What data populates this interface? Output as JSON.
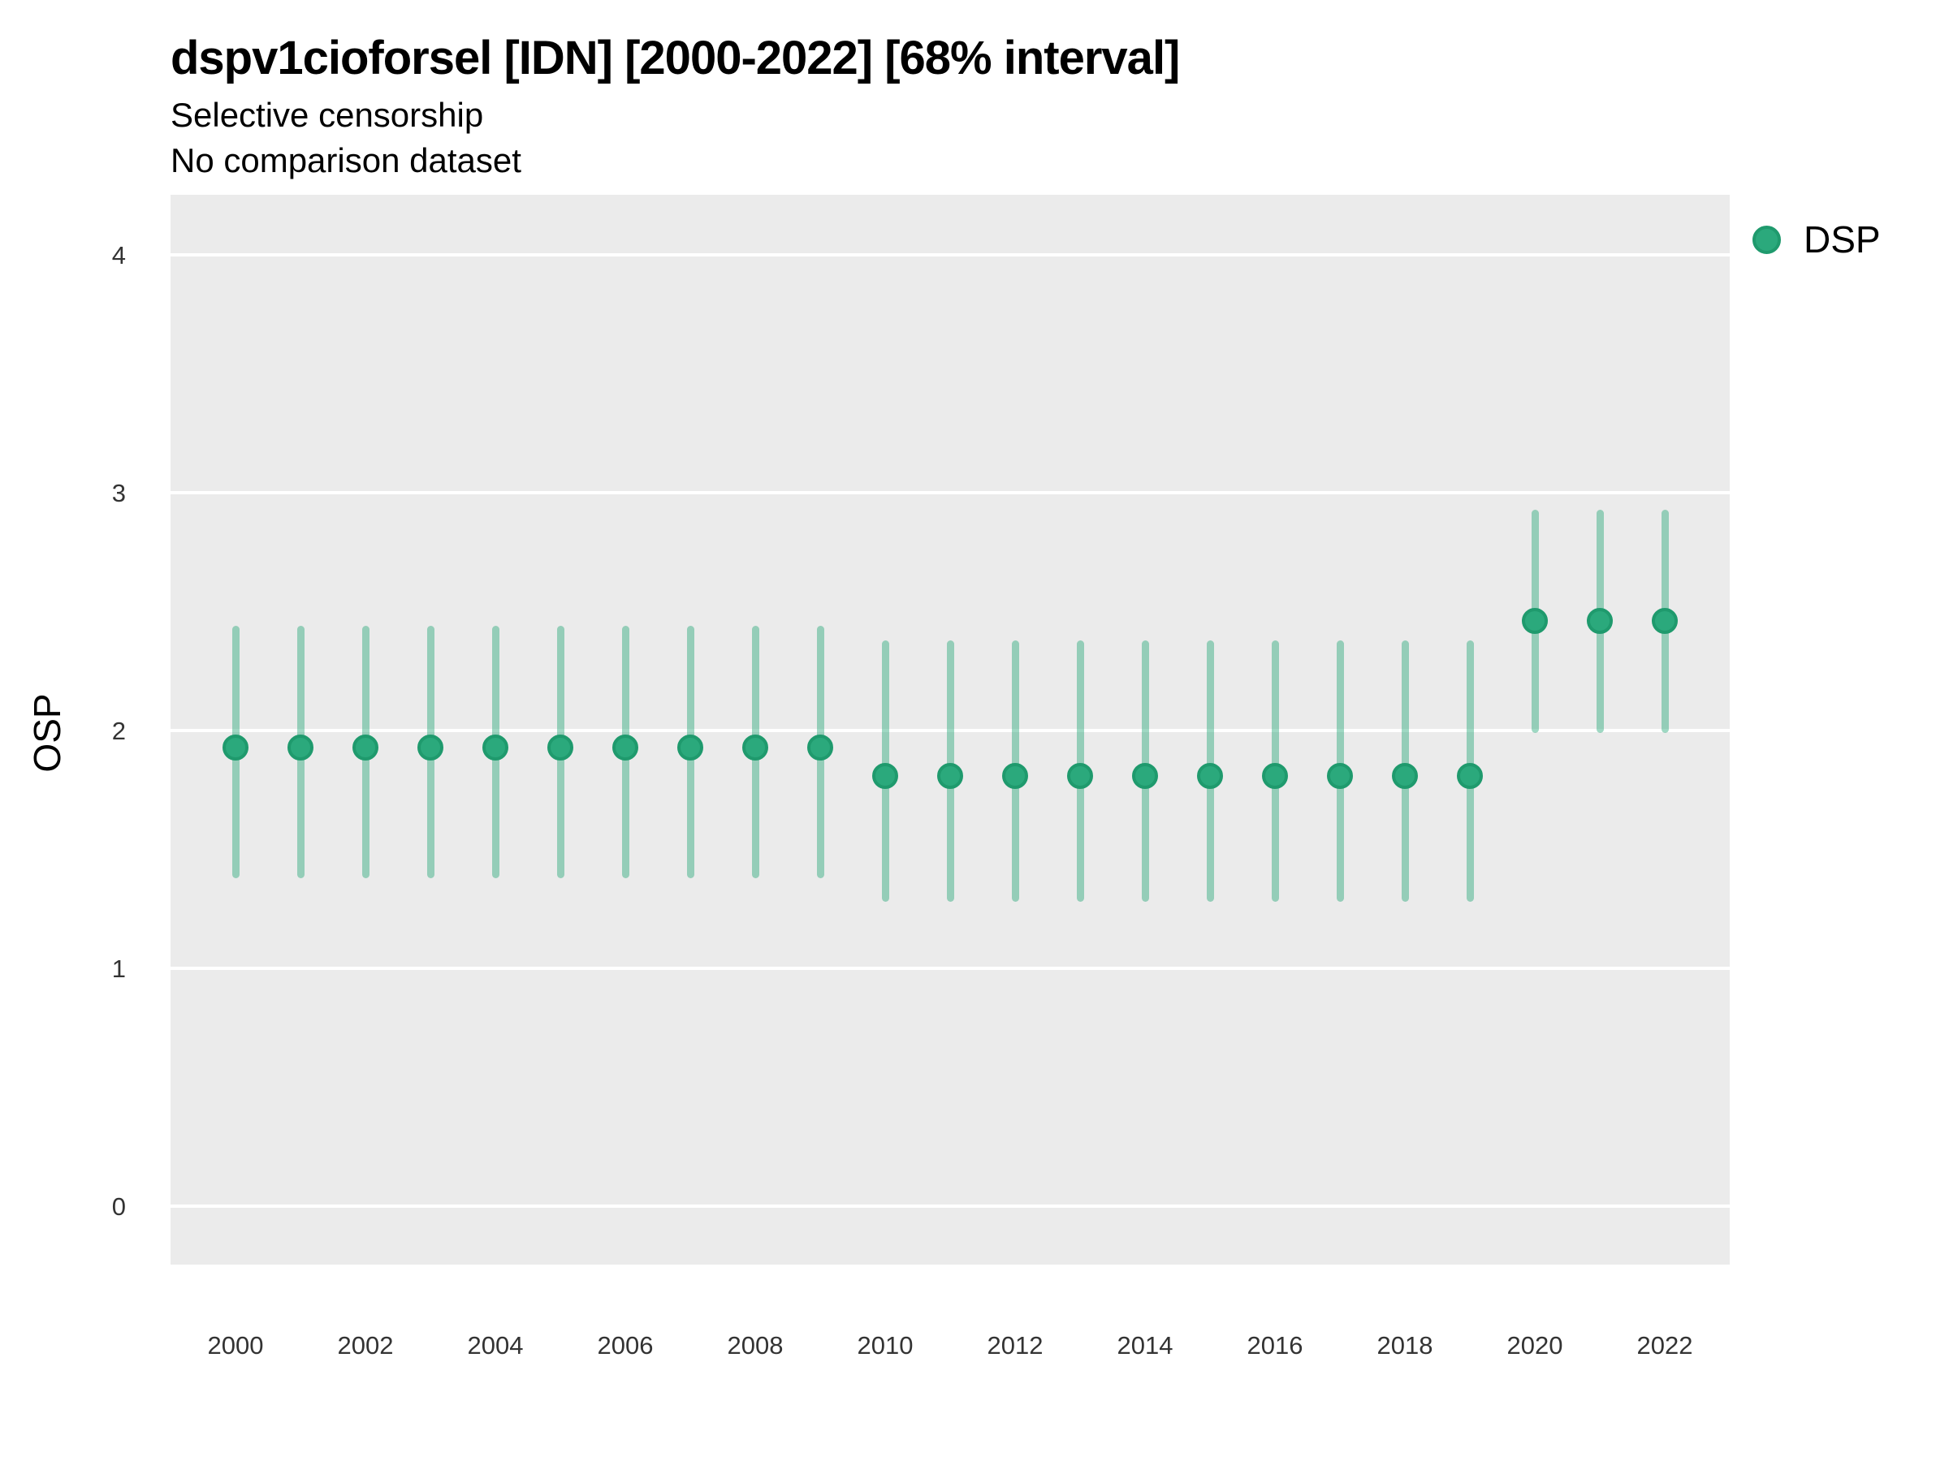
{
  "title": "dspv1cioforsel [IDN] [2000-2022] [68% interval]",
  "subtitle_line1": "Selective censorship",
  "subtitle_line2": "No comparison dataset",
  "y_axis_title": "OSP",
  "legend": {
    "position": "right",
    "items": [
      {
        "label": "DSP",
        "color": "#2ba97c"
      }
    ]
  },
  "colors": {
    "point_fill": "#2ba97c",
    "point_border": "#1f9a6d",
    "interval_bar": "rgba(42,168,123,0.45)",
    "panel_background": "#ebebeb",
    "gridline": "#ffffff",
    "axis_text": "#333333",
    "title_text": "#000000"
  },
  "chart_data": {
    "type": "scatter",
    "subtype": "pointrange-interval",
    "title": "dspv1cioforsel [IDN] [2000-2022] [68% interval]",
    "subtitle": [
      "Selective censorship",
      "No comparison dataset"
    ],
    "interval": "68%",
    "country": "IDN",
    "xlabel": "",
    "ylabel": "OSP",
    "ylim": [
      0,
      4
    ],
    "yticks": [
      0,
      1,
      2,
      3,
      4
    ],
    "xticks": [
      2000,
      2002,
      2004,
      2006,
      2008,
      2010,
      2012,
      2014,
      2016,
      2018,
      2020,
      2022
    ],
    "grid": "horizontal-major-only",
    "legend_position": "right",
    "series": [
      {
        "name": "DSP",
        "color": "#2ba97c",
        "x": [
          2000,
          2001,
          2002,
          2003,
          2004,
          2005,
          2006,
          2007,
          2008,
          2009,
          2010,
          2011,
          2012,
          2013,
          2014,
          2015,
          2016,
          2017,
          2018,
          2019,
          2020,
          2021,
          2022
        ],
        "mean": [
          1.93,
          1.93,
          1.93,
          1.93,
          1.93,
          1.93,
          1.93,
          1.93,
          1.93,
          1.93,
          1.81,
          1.81,
          1.81,
          1.81,
          1.81,
          1.81,
          1.81,
          1.81,
          1.81,
          1.81,
          2.46,
          2.46,
          2.46
        ],
        "lower": [
          1.38,
          1.38,
          1.38,
          1.38,
          1.38,
          1.38,
          1.38,
          1.38,
          1.38,
          1.38,
          1.28,
          1.28,
          1.28,
          1.28,
          1.28,
          1.28,
          1.28,
          1.28,
          1.28,
          1.28,
          1.99,
          1.99,
          1.99
        ],
        "upper": [
          2.44,
          2.44,
          2.44,
          2.44,
          2.44,
          2.44,
          2.44,
          2.44,
          2.44,
          2.44,
          2.38,
          2.38,
          2.38,
          2.38,
          2.38,
          2.38,
          2.38,
          2.38,
          2.38,
          2.38,
          2.93,
          2.93,
          2.93
        ]
      }
    ]
  }
}
